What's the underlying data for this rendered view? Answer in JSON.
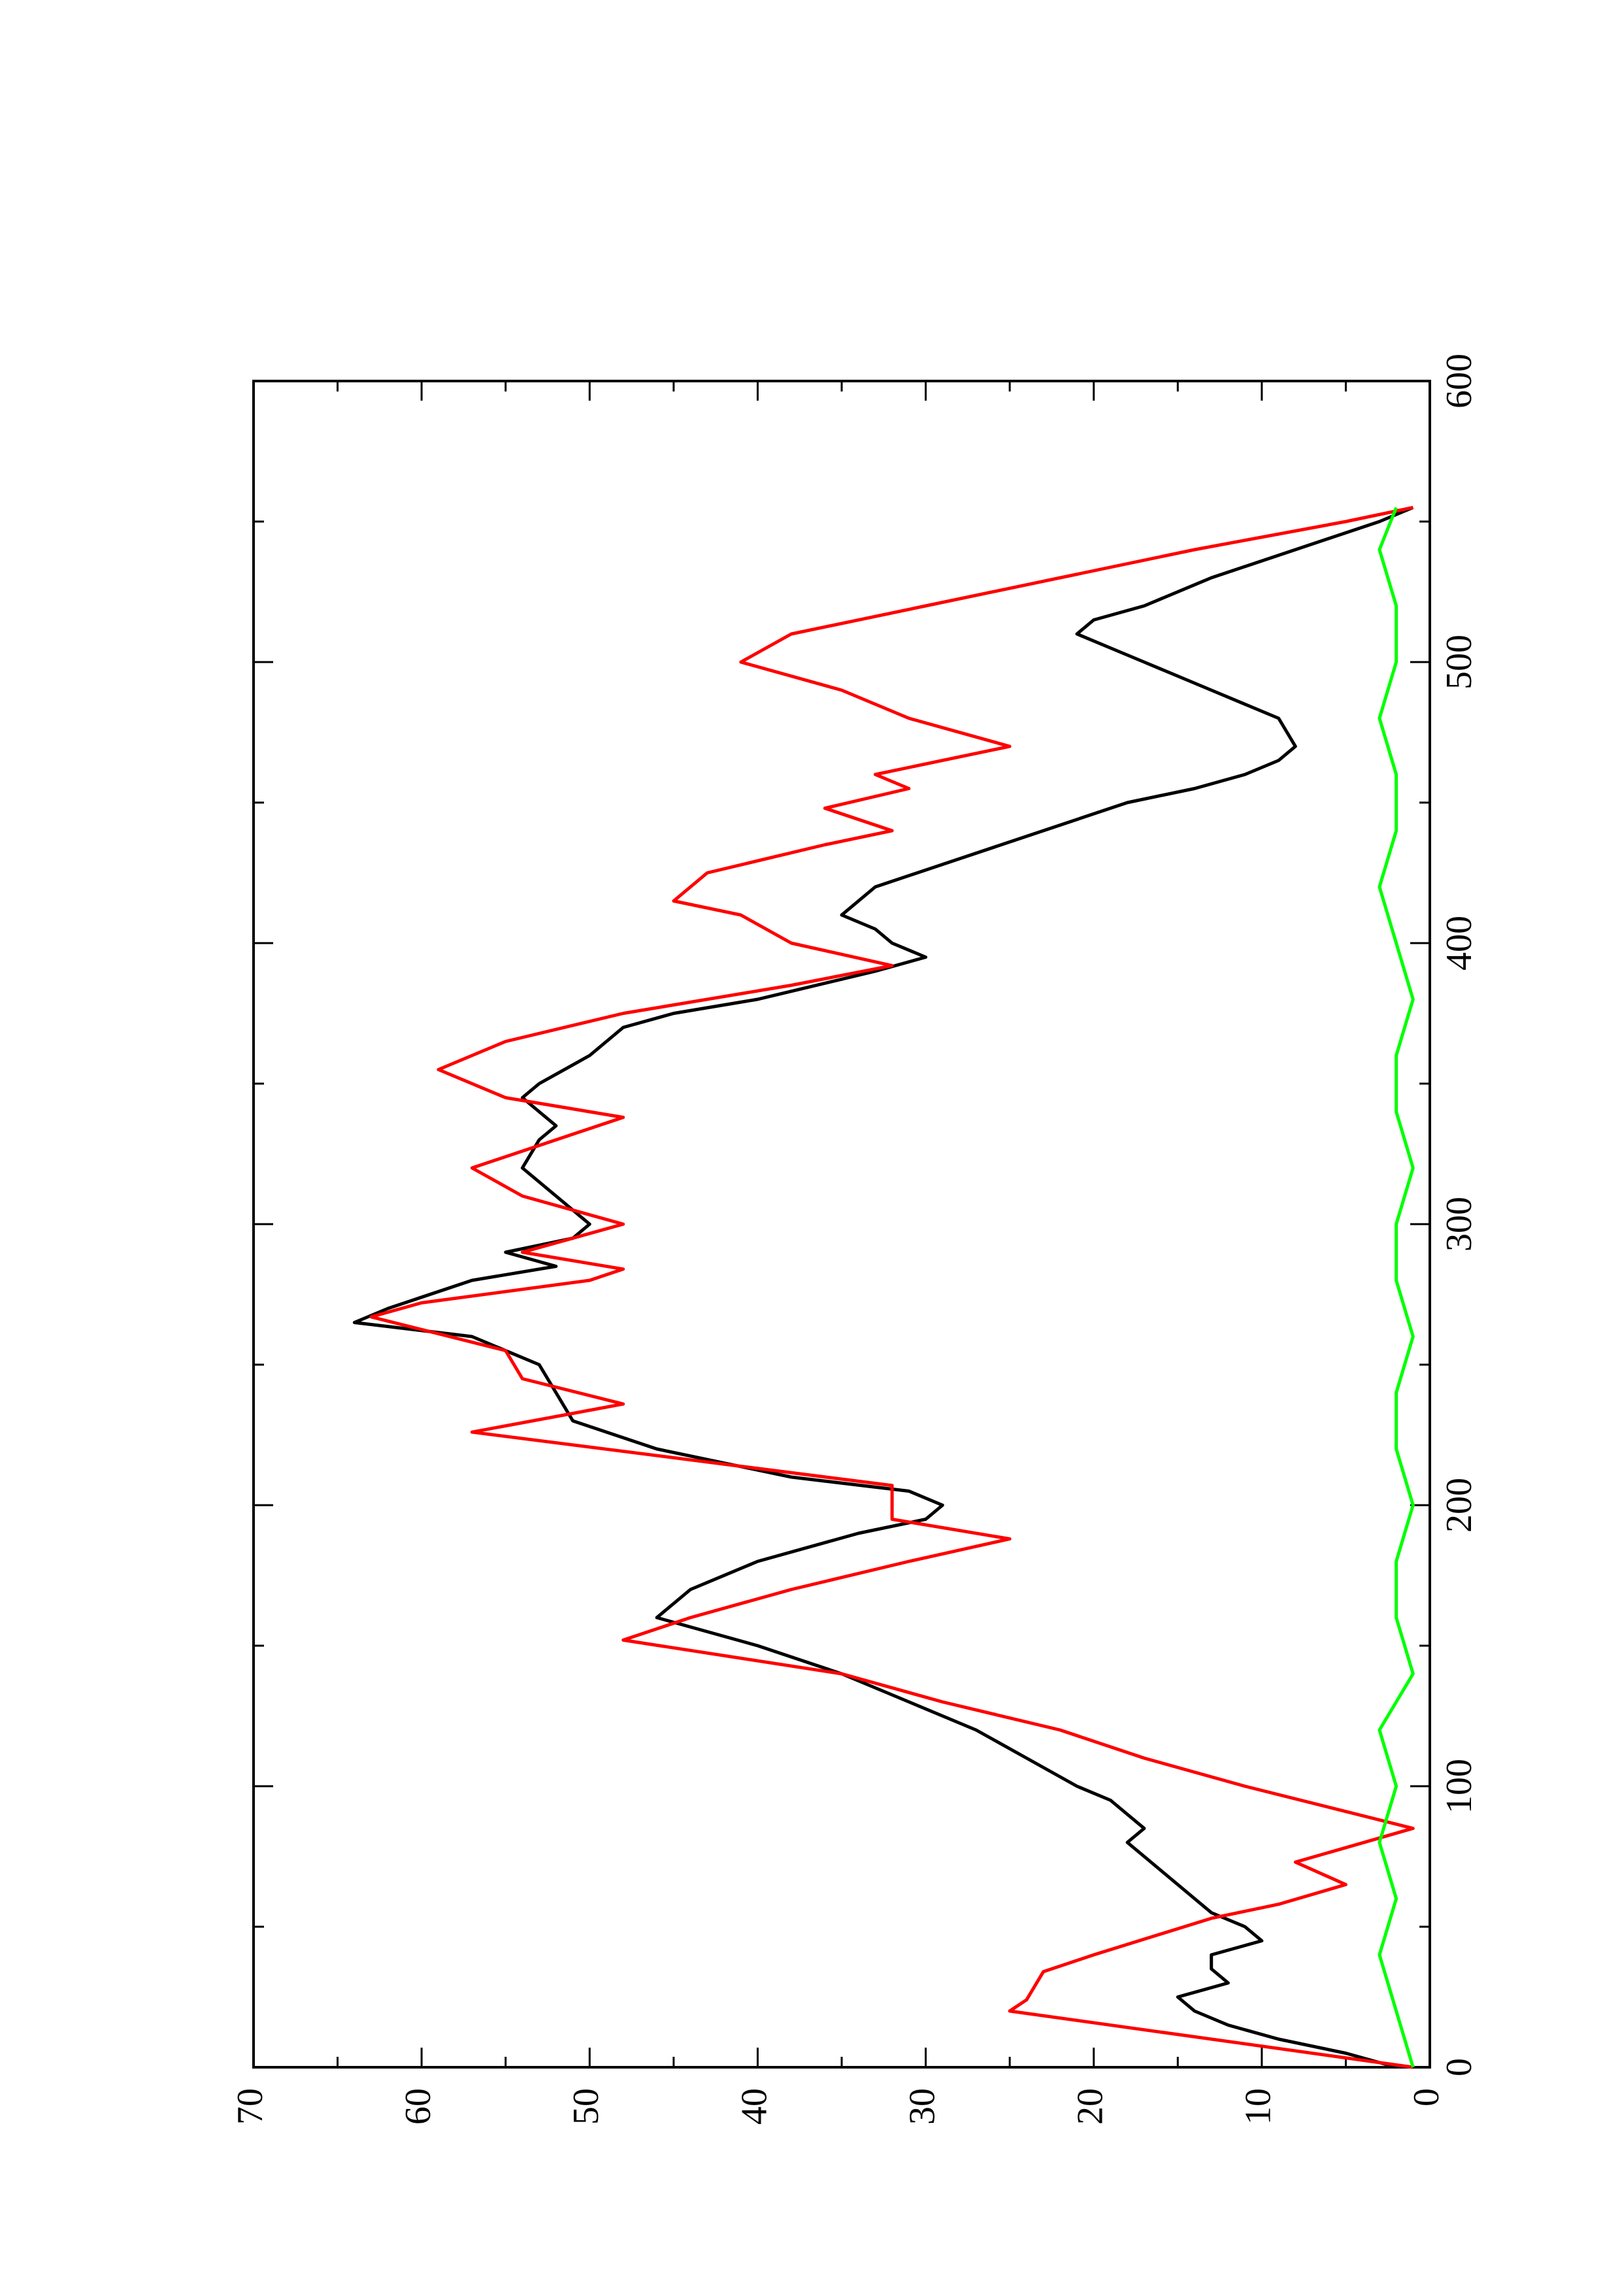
{
  "chart_data": {
    "type": "line",
    "orientation": "rotated-90-ccw",
    "title": "",
    "xlabel": "",
    "ylabel": "",
    "xlim": [
      0,
      600
    ],
    "ylim": [
      0,
      70
    ],
    "x_ticks": [
      0,
      100,
      200,
      300,
      400,
      500,
      600
    ],
    "y_ticks": [
      0,
      10,
      20,
      30,
      40,
      50,
      60,
      70
    ],
    "x_tick_labels": [
      "0",
      "100",
      "200",
      "300",
      "400",
      "500",
      "600"
    ],
    "y_tick_labels": [
      "0",
      "10",
      "20",
      "30",
      "40",
      "50",
      "60",
      "70"
    ],
    "grid": false,
    "series": [
      {
        "color": "#000000",
        "x": [
          0,
          5,
          10,
          15,
          20,
          25,
          30,
          35,
          40,
          45,
          50,
          55,
          60,
          65,
          70,
          75,
          80,
          85,
          90,
          95,
          100,
          110,
          120,
          130,
          140,
          150,
          160,
          170,
          180,
          190,
          195,
          200,
          205,
          210,
          220,
          230,
          240,
          250,
          260,
          265,
          270,
          280,
          285,
          290,
          295,
          300,
          305,
          310,
          320,
          330,
          335,
          340,
          345,
          350,
          360,
          370,
          375,
          380,
          390,
          395,
          400,
          405,
          410,
          420,
          430,
          440,
          450,
          455,
          460,
          465,
          470,
          480,
          490,
          500,
          505,
          510,
          515,
          520,
          530,
          540,
          550,
          555
        ],
        "values": [
          2,
          5,
          9,
          12,
          14,
          15,
          12,
          13,
          13,
          10,
          11,
          13,
          14,
          15,
          16,
          17,
          18,
          17,
          18,
          19,
          21,
          24,
          27,
          31,
          35,
          40,
          46,
          44,
          40,
          34,
          30,
          29,
          31,
          38,
          46,
          51,
          52,
          53,
          57,
          64,
          62,
          57,
          52,
          55,
          51,
          50,
          51,
          52,
          54,
          53,
          52,
          53,
          54,
          53,
          50,
          48,
          45,
          40,
          33,
          30,
          32,
          33,
          35,
          33,
          28,
          23,
          18,
          14,
          11,
          9,
          8,
          9,
          13,
          17,
          19,
          21,
          20,
          17,
          13,
          8,
          3,
          1
        ]
      },
      {
        "color": "#ff0000",
        "x": [
          0,
          20,
          24,
          34,
          40,
          53,
          58,
          65,
          73,
          85,
          91,
          100,
          110,
          120,
          130,
          140,
          152,
          160,
          170,
          180,
          188,
          195,
          207,
          226,
          236,
          245,
          255,
          267,
          272,
          280,
          284,
          290,
          300,
          310,
          320,
          330,
          338,
          345,
          355,
          365,
          375,
          385,
          392,
          400,
          410,
          415,
          425,
          435,
          440,
          448,
          455,
          460,
          470,
          480,
          490,
          500,
          510,
          520,
          530,
          540,
          550,
          555
        ],
        "values": [
          1,
          25,
          24,
          23,
          20,
          13,
          9,
          5,
          8,
          1,
          5,
          11,
          17,
          22,
          29,
          35,
          48,
          44,
          38,
          31,
          25,
          32,
          32,
          57,
          48,
          54,
          55,
          63,
          60,
          50,
          48,
          54,
          48,
          54,
          57,
          52,
          48,
          55,
          59,
          55,
          48,
          38,
          32,
          38,
          41,
          45,
          43,
          36,
          32,
          36,
          31,
          33,
          25,
          31,
          35,
          41,
          38,
          30,
          22,
          14,
          5,
          1
        ]
      },
      {
        "color": "#00ff00",
        "x": [
          0,
          20,
          40,
          60,
          80,
          100,
          120,
          140,
          160,
          180,
          200,
          220,
          240,
          260,
          280,
          300,
          320,
          340,
          360,
          380,
          400,
          420,
          440,
          460,
          480,
          500,
          520,
          540,
          555
        ],
        "values": [
          1,
          2,
          3,
          2,
          3,
          2,
          3,
          1,
          2,
          2,
          1,
          2,
          2,
          1,
          2,
          2,
          1,
          2,
          2,
          1,
          2,
          3,
          2,
          2,
          3,
          2,
          2,
          3,
          2
        ]
      }
    ]
  }
}
